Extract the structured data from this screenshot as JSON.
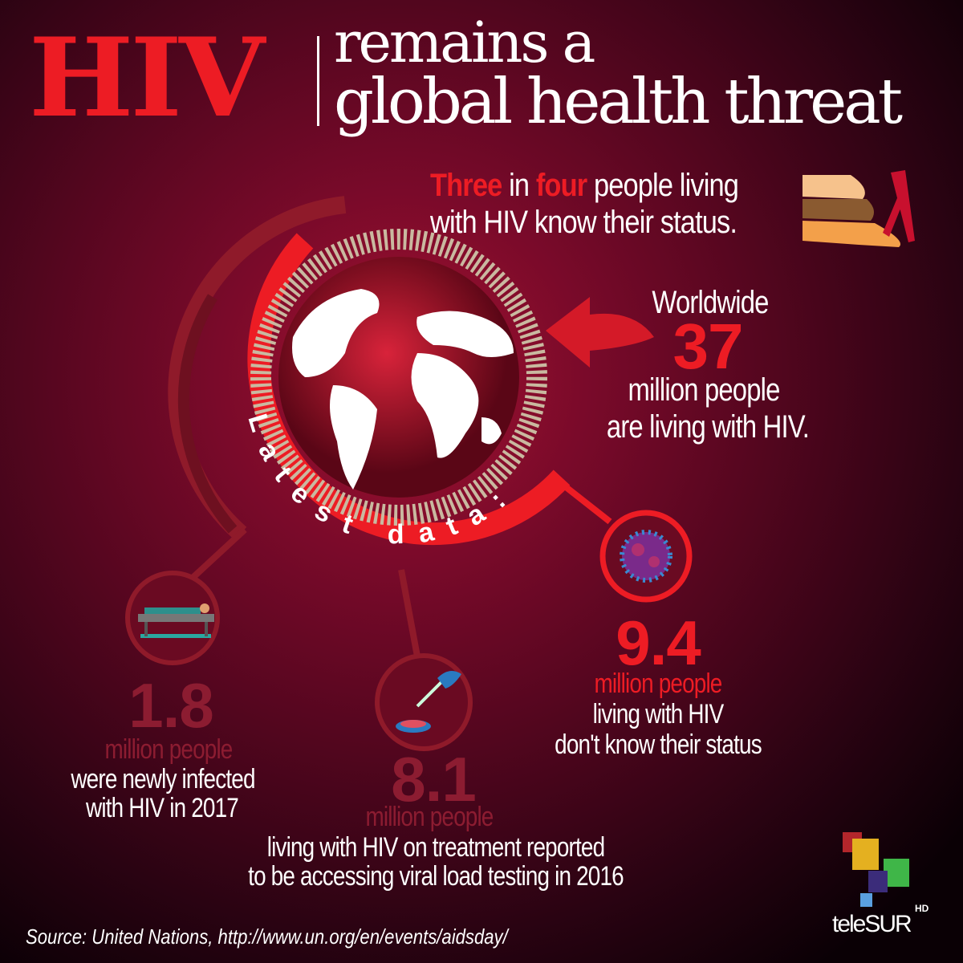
{
  "title": {
    "hiv": "HIV",
    "line1": "remains a",
    "line2": "global health threat"
  },
  "status_fact": {
    "three": "Three",
    "in": " in ",
    "four": "four",
    "rest1": " people living",
    "line2": "with HIV know their status."
  },
  "worldwide": {
    "label": "Worldwide",
    "number": "37",
    "unit": "million people",
    "text": "are living with HIV."
  },
  "ring_label": "Latest data:",
  "new_infections": {
    "number": "1.8",
    "unit": "million people",
    "line1": "were newly infected",
    "line2": "with HIV in 2017"
  },
  "viral_load": {
    "number": "8.1",
    "unit": "million people",
    "line1": "living with HIV on treatment reported",
    "line2": "to be accessing viral load testing in 2016"
  },
  "unaware": {
    "number": "9.4",
    "unit": "million people",
    "line1": "living with HIV",
    "line2": "don't know their status"
  },
  "source": "Source: United Nations, http://www.un.org/en/events/aidsday/",
  "logo": {
    "name": "teleSUR",
    "badge": "HD"
  },
  "colors": {
    "accent": "#ed1c24",
    "dark_red": "#8c1c31",
    "background": "#6e0a28"
  }
}
